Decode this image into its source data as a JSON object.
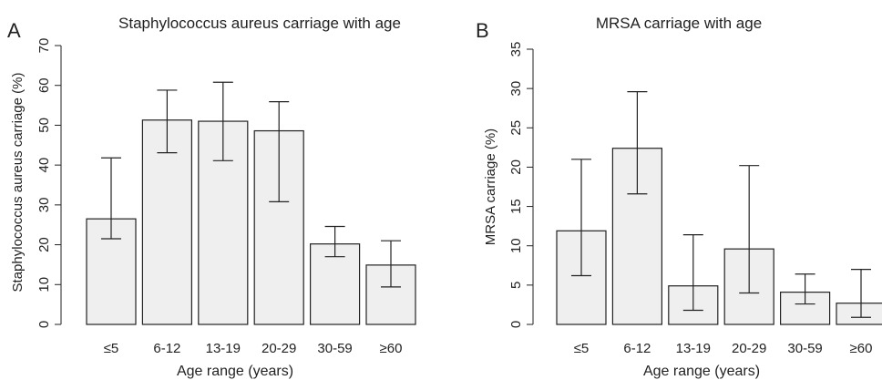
{
  "chart_data": [
    {
      "type": "bar",
      "panel_label": "A",
      "title": "Staphylococcus aureus carriage with age",
      "xlabel": "Age range (years)",
      "ylabel": "Staphylococcus aureus carriage (%)",
      "ylim": [
        0,
        70
      ],
      "yticks": [
        "0",
        "10",
        "20",
        "30",
        "40",
        "50",
        "60",
        "70"
      ],
      "categories": [
        "≤5",
        "6-12",
        "13-19",
        "20-29",
        "30-59",
        "≥60"
      ],
      "values": [
        26.5,
        51.3,
        51.0,
        48.6,
        20.2,
        14.9
      ],
      "error_low": [
        21.5,
        43.1,
        41.1,
        30.8,
        17.0,
        9.4
      ],
      "error_high": [
        41.8,
        58.8,
        60.8,
        55.9,
        24.6,
        21.0
      ],
      "bar_color": "#efefef",
      "edge_color": "#222222",
      "grid": false
    },
    {
      "type": "bar",
      "panel_label": "B",
      "title": "MRSA carriage with age",
      "xlabel": "Age range (years)",
      "ylabel": "MRSA carriage (%)",
      "ylim": [
        0,
        35
      ],
      "yticks": [
        "0",
        "5",
        "10",
        "15",
        "20",
        "25",
        "30",
        "35"
      ],
      "categories": [
        "≤5",
        "6-12",
        "13-19",
        "20-29",
        "30-59",
        "≥60"
      ],
      "values": [
        11.9,
        22.4,
        4.9,
        9.6,
        4.1,
        2.7
      ],
      "error_low": [
        6.2,
        16.6,
        1.8,
        4.0,
        2.6,
        0.9
      ],
      "error_high": [
        21.0,
        29.6,
        11.4,
        20.2,
        6.4,
        7.0
      ],
      "bar_color": "#efefef",
      "edge_color": "#222222",
      "grid": false
    }
  ]
}
